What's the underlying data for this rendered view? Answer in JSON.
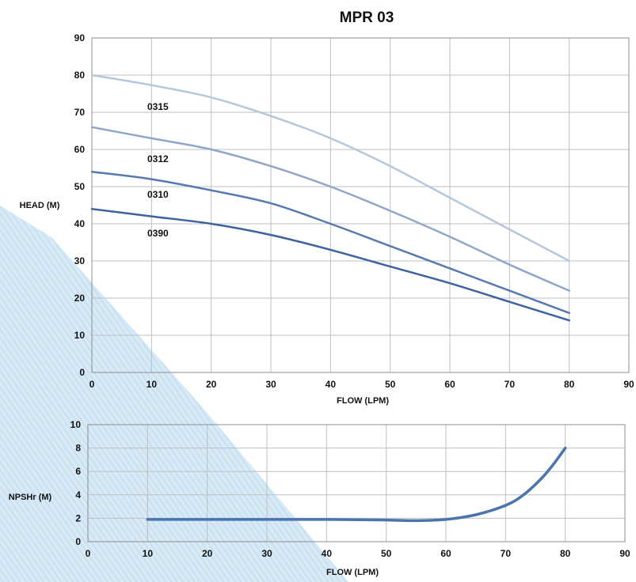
{
  "chart_data": [
    {
      "type": "line",
      "title": "MPR 03",
      "xlabel": "FLOW (LPM)",
      "ylabel": "HEAD (M)",
      "xlim": [
        0,
        90
      ],
      "ylim": [
        0,
        90
      ],
      "xticks": [
        0,
        10,
        20,
        30,
        40,
        50,
        60,
        70,
        80,
        90
      ],
      "yticks": [
        0,
        10,
        20,
        30,
        40,
        50,
        60,
        70,
        80,
        90
      ],
      "grid": true,
      "series": [
        {
          "name": "0315",
          "color": "#b4c7dc",
          "x": [
            0,
            10,
            20,
            30,
            40,
            50,
            60,
            70,
            80
          ],
          "y": [
            80,
            77.3,
            74,
            69,
            63,
            55.5,
            47,
            38.5,
            30
          ]
        },
        {
          "name": "0312",
          "color": "#8ea6c8",
          "x": [
            0,
            10,
            20,
            30,
            40,
            50,
            60,
            70,
            80
          ],
          "y": [
            66,
            63,
            60,
            55.5,
            50,
            43.5,
            36.5,
            29,
            22
          ]
        },
        {
          "name": "0310",
          "color": "#5679b0",
          "x": [
            0,
            10,
            20,
            30,
            40,
            50,
            60,
            70,
            80
          ],
          "y": [
            54,
            52,
            49,
            45.5,
            40,
            34,
            28,
            22,
            16
          ]
        },
        {
          "name": "0390",
          "color": "#3d62a0",
          "x": [
            0,
            10,
            20,
            30,
            40,
            50,
            60,
            70,
            80
          ],
          "y": [
            44,
            42,
            40,
            37,
            33,
            28.5,
            24,
            19,
            14
          ]
        }
      ]
    },
    {
      "type": "line",
      "title": "",
      "xlabel": "FLOW (LPM)",
      "ylabel": "NPSHr (M)",
      "xlim": [
        0,
        90
      ],
      "ylim": [
        0,
        10
      ],
      "xticks": [
        0,
        10,
        20,
        30,
        40,
        50,
        60,
        70,
        80,
        90
      ],
      "yticks": [
        0,
        2,
        4,
        6,
        8,
        10
      ],
      "grid": true,
      "series": [
        {
          "name": "",
          "color": "#4a74ad",
          "x": [
            10,
            20,
            30,
            40,
            50,
            55,
            60,
            65,
            70,
            73,
            76,
            78,
            80
          ],
          "y": [
            1.9,
            1.9,
            1.9,
            1.9,
            1.85,
            1.8,
            1.9,
            2.3,
            3.1,
            4.0,
            5.4,
            6.6,
            8.0
          ]
        }
      ]
    }
  ]
}
